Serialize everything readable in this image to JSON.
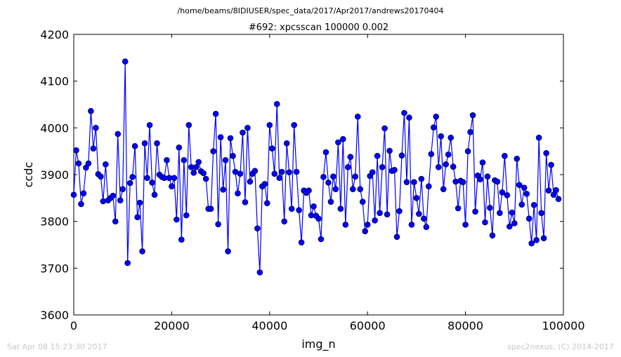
{
  "figure": {
    "path": "/home/beams/8IDIUSER/spec_data/2017/Apr2017/andrews20170404",
    "footer_left": "Sat Apr 08 15:23:30 2017",
    "footer_right": "spec2nexus, (C) 2014-2017"
  },
  "chart_data": {
    "type": "line",
    "title": "#692: xpcsscan 100000 0.002",
    "xlabel": "img_n",
    "ylabel": "ccdc",
    "xlim": [
      0,
      100000
    ],
    "ylim": [
      3600,
      4200
    ],
    "xticks": [
      0,
      20000,
      40000,
      60000,
      80000,
      100000
    ],
    "xtick_labels": [
      "0",
      "20000",
      "40000",
      "60000",
      "80000",
      "100000"
    ],
    "yticks": [
      3600,
      3700,
      3800,
      3900,
      4000,
      4100,
      4200
    ],
    "ytick_labels": [
      "3600",
      "3700",
      "3800",
      "3900",
      "4000",
      "4100",
      "4200"
    ],
    "grid": false,
    "series": [
      {
        "color": "#0000ff",
        "marker": "circle",
        "x_start": 0,
        "x_step": 500,
        "values": [
          3857,
          3952,
          3924,
          3837,
          3860,
          3915,
          3924,
          4036,
          3956,
          4000,
          3901,
          3896,
          3843,
          3922,
          3845,
          3850,
          3855,
          3800,
          3987,
          3845,
          3869,
          4142,
          3711,
          3882,
          3895,
          3961,
          3809,
          3840,
          3736,
          3967,
          3893,
          4006,
          3883,
          3857,
          3967,
          3900,
          3895,
          3893,
          3931,
          3893,
          3875,
          3893,
          3804,
          3958,
          3761,
          3931,
          3813,
          4006,
          3916,
          3904,
          3916,
          3927,
          3907,
          3903,
          3891,
          3827,
          3827,
          3950,
          4030,
          3794,
          3980,
          3868,
          3931,
          3736,
          3978,
          3940,
          3906,
          3860,
          3902,
          3990,
          3841,
          4000,
          3885,
          3902,
          3908,
          3785,
          3691,
          3875,
          3880,
          3839,
          4006,
          3956,
          3902,
          4051,
          3893,
          3906,
          3800,
          3967,
          3905,
          3827,
          4006,
          3906,
          3824,
          3755,
          3866,
          3861,
          3866,
          3813,
          3832,
          3812,
          3806,
          3762,
          3895,
          3948,
          3883,
          3842,
          3896,
          3869,
          3969,
          3827,
          3976,
          3793,
          3916,
          3938,
          3869,
          3896,
          4024,
          3869,
          3842,
          3779,
          3793,
          3897,
          3905,
          3802,
          3940,
          3818,
          3916,
          3999,
          3815,
          3951,
          3908,
          3910,
          3767,
          3822,
          3941,
          4032,
          3884,
          4022,
          3793,
          3884,
          3850,
          3816,
          3891,
          3806,
          3788,
          3875,
          3944,
          4001,
          4024,
          3916,
          3982,
          3869,
          3922,
          3943,
          3979,
          3917,
          3885,
          3828,
          3887,
          3884,
          3793,
          3950,
          3991,
          4027,
          3821,
          3898,
          3890,
          3926,
          3798,
          3896,
          3829,
          3770,
          3888,
          3885,
          3818,
          3862,
          3940,
          3856,
          3789,
          3819,
          3796,
          3934,
          3878,
          3836,
          3872,
          3859,
          3806,
          3753,
          3835,
          3760,
          3979,
          3818,
          3764,
          3946,
          3866,
          3921,
          3857,
          3867,
          3848
        ]
      }
    ]
  }
}
